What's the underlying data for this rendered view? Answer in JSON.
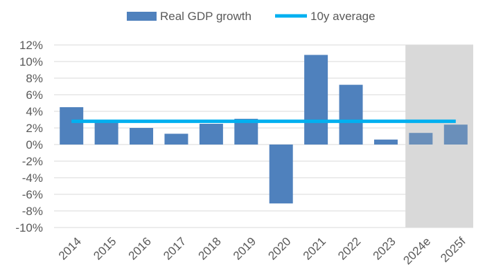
{
  "chart_data": {
    "type": "bar",
    "title": "",
    "xlabel": "",
    "ylabel": "",
    "categories": [
      "2014",
      "2015",
      "2016",
      "2017",
      "2018",
      "2019",
      "2020",
      "2021",
      "2022",
      "2023",
      "2024e",
      "2025f"
    ],
    "series": [
      {
        "name": "Real GDP growth",
        "type": "bar",
        "color": "#4f81bd",
        "forecast_color": "#6a8fba",
        "values": [
          4.5,
          2.9,
          2.0,
          1.3,
          2.5,
          3.1,
          -7.1,
          10.8,
          7.2,
          0.6,
          1.4,
          2.4
        ]
      },
      {
        "name": "10y average",
        "type": "line",
        "color": "#00b0f0",
        "values": [
          2.8,
          2.8,
          2.8,
          2.8,
          2.8,
          2.8,
          2.8,
          2.8,
          2.8,
          2.8,
          2.8,
          2.8
        ]
      }
    ],
    "forecast_categories": [
      "2024e",
      "2025f"
    ],
    "forecast_shading_color": "#d9d9d9",
    "ylim": [
      -10,
      12
    ],
    "yticks": [
      -10,
      -8,
      -6,
      -4,
      -2,
      0,
      2,
      4,
      6,
      8,
      10,
      12
    ],
    "ytick_labels": [
      "-10%",
      "-8%",
      "-6%",
      "-4%",
      "-2%",
      "0%",
      "2%",
      "4%",
      "6%",
      "8%",
      "10%",
      "12%"
    ],
    "grid": true,
    "legend_position": "top"
  }
}
